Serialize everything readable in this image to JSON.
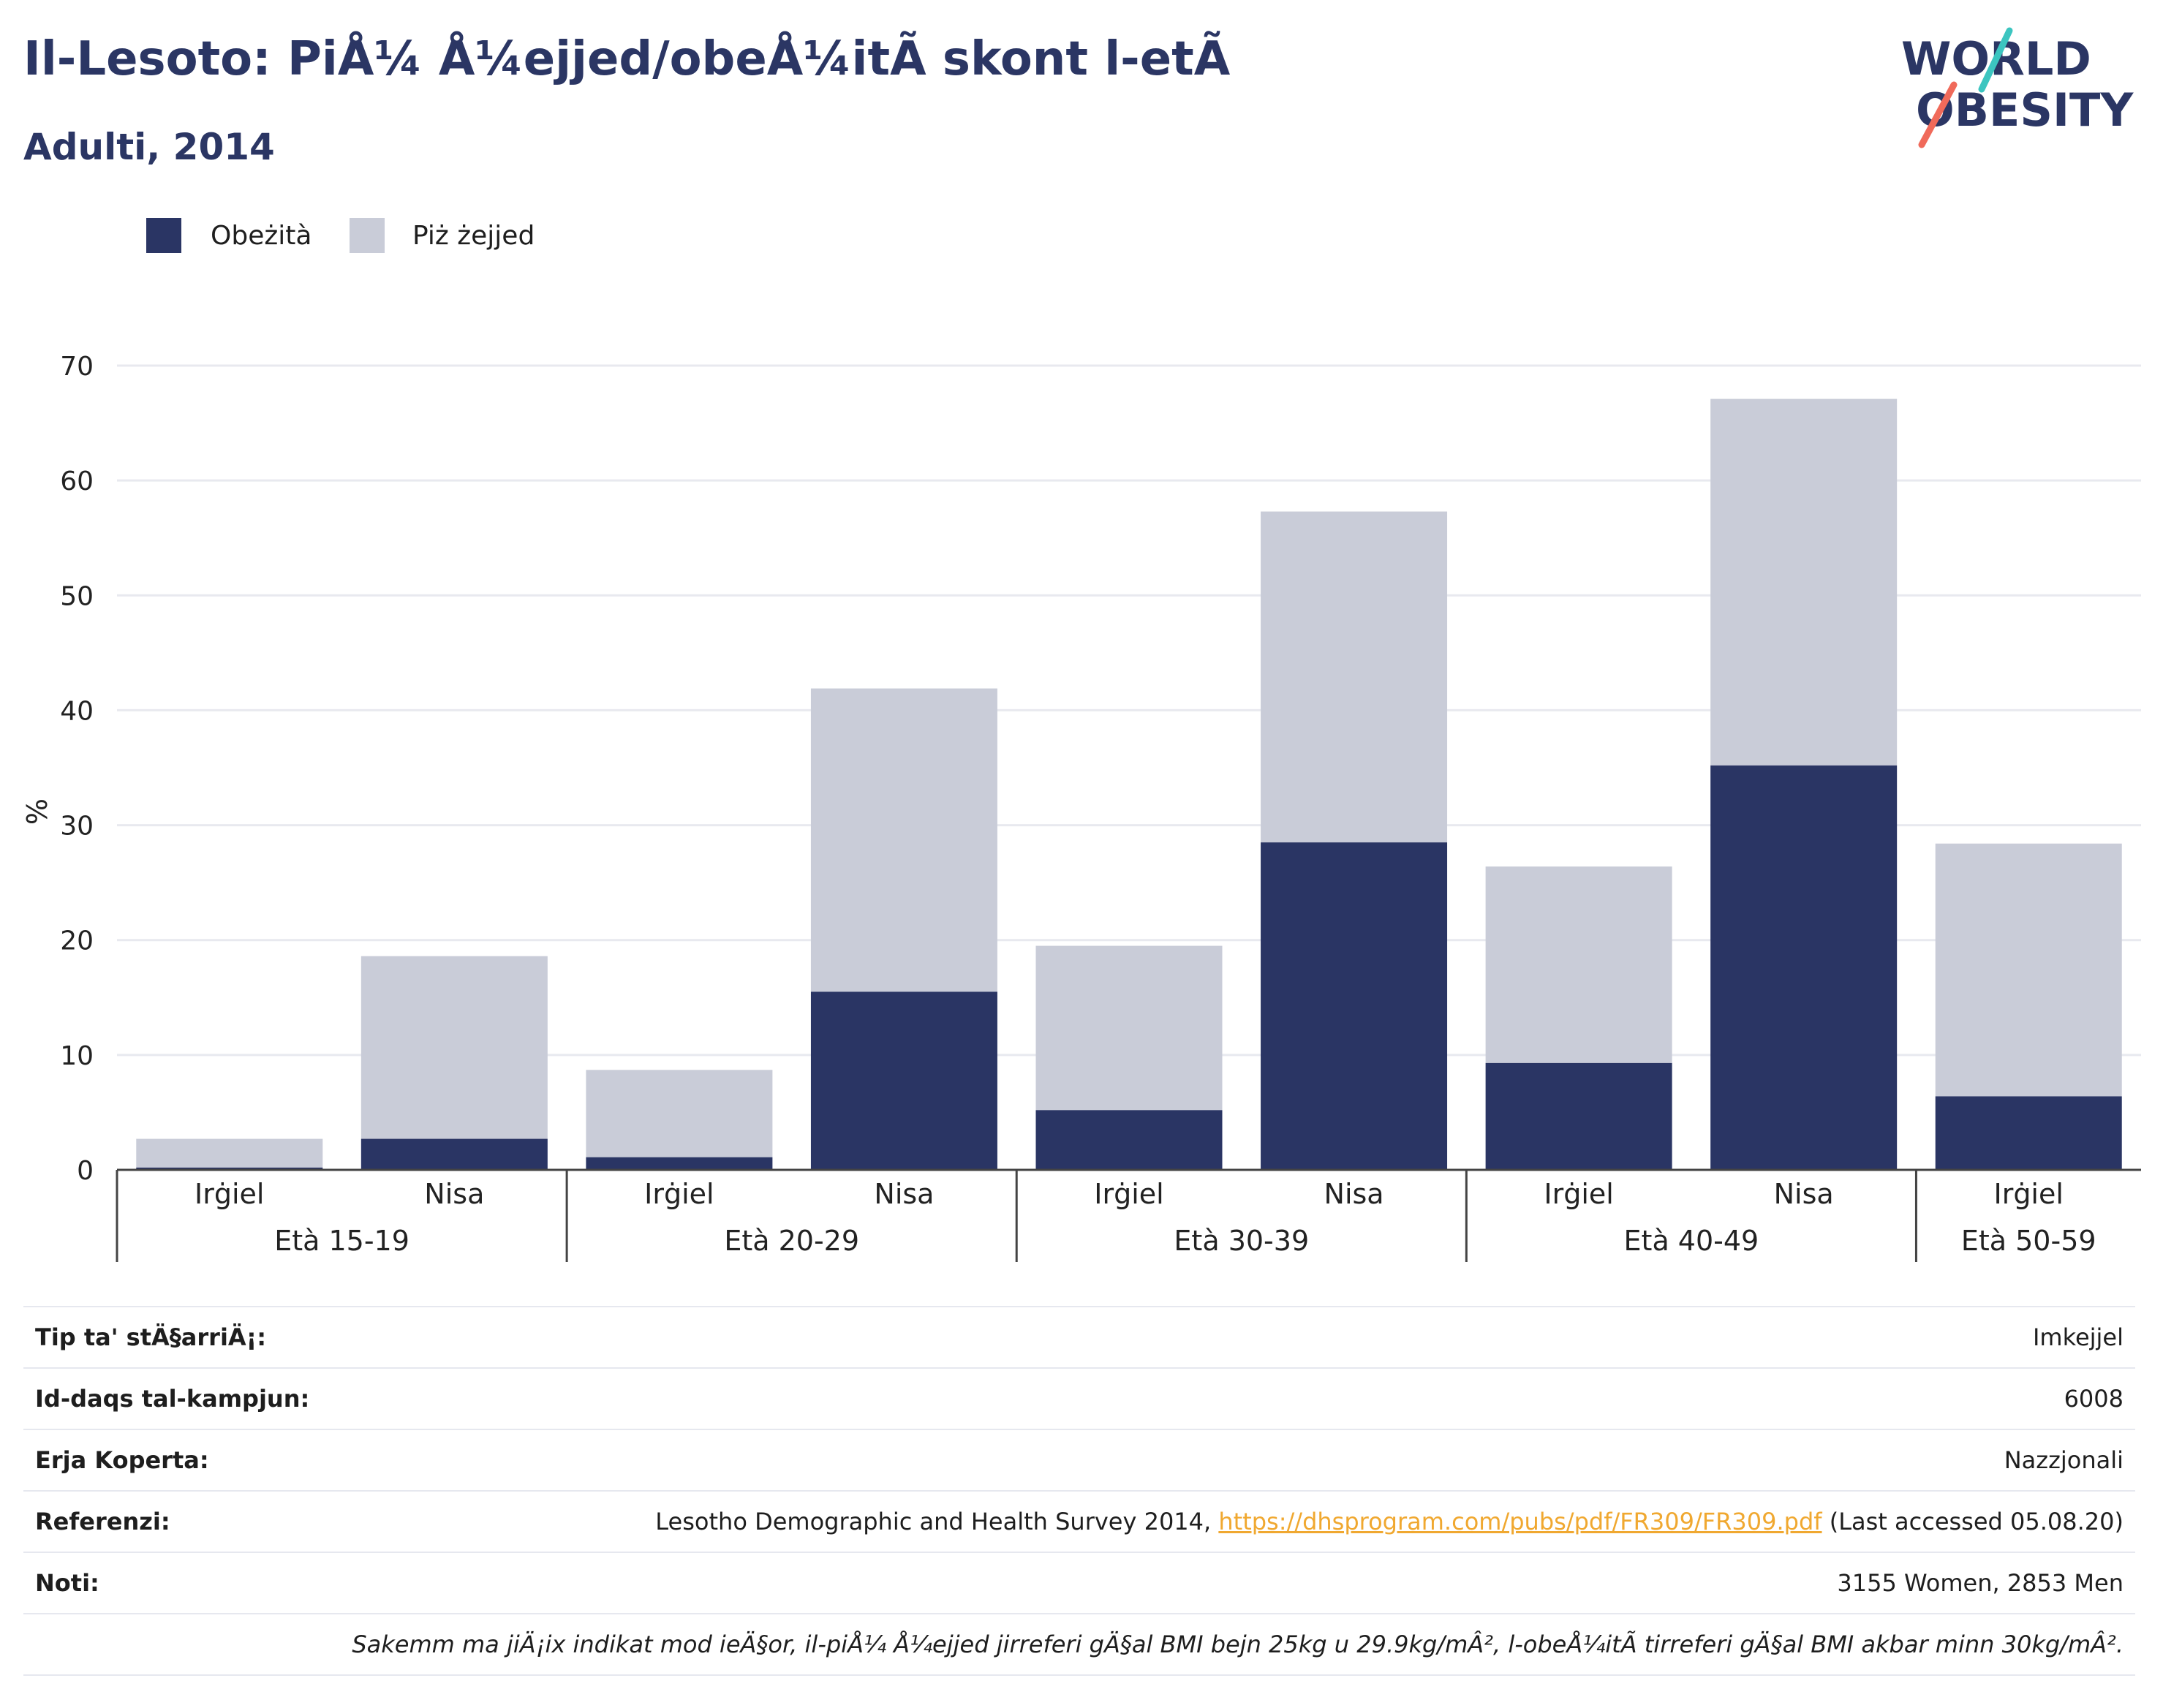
{
  "header": {
    "title": "Il-Lesoto: PiÅ¼ Å¼ejjed/obeÅ¼itÃ  skont l-etÃ",
    "subtitle": "Adulti, 2014"
  },
  "logo": {
    "line1": "WORLD",
    "line2": "OBESITY",
    "accent": "#3cc5c0",
    "slash": "#f06a5a",
    "text_color": "#2b3664"
  },
  "colors": {
    "obesity": "#2a3564",
    "overweight": "#c9ccd8",
    "title": "#2b3664"
  },
  "chart_data": {
    "type": "bar",
    "stacked": true,
    "ylabel": "%",
    "ylim": [
      0,
      70
    ],
    "yticks": [
      0,
      10,
      20,
      30,
      40,
      50,
      60,
      70
    ],
    "grid": true,
    "legend_position": "top-left",
    "groups": [
      {
        "label": "Età 15-19",
        "bars": [
          "Irġiel",
          "Nisa"
        ]
      },
      {
        "label": "Età 20-29",
        "bars": [
          "Irġiel",
          "Nisa"
        ]
      },
      {
        "label": "Età 30-39",
        "bars": [
          "Irġiel",
          "Nisa"
        ]
      },
      {
        "label": "Età 40-49",
        "bars": [
          "Irġiel",
          "Nisa"
        ]
      },
      {
        "label": "Età 50-59",
        "bars": [
          "Irġiel"
        ]
      }
    ],
    "categories": [
      "Irġiel",
      "Nisa",
      "Irġiel",
      "Nisa",
      "Irġiel",
      "Nisa",
      "Irġiel",
      "Nisa",
      "Irġiel"
    ],
    "series": [
      {
        "name": "Obeżità",
        "values": [
          0.2,
          2.7,
          1.1,
          15.5,
          5.2,
          28.5,
          9.3,
          35.2,
          6.4
        ]
      },
      {
        "name": "Piż żejjed",
        "values": [
          2.5,
          15.9,
          7.6,
          26.4,
          14.3,
          28.8,
          17.1,
          31.9,
          22.0
        ]
      }
    ]
  },
  "meta": {
    "survey_type_label": "Tip ta' stÄ§arriÄ¡:",
    "survey_type_value": "Imkejjel",
    "sample_label": "Id-daqs tal-kampjun:",
    "sample_value": "6008",
    "area_label": "Erja Koperta:",
    "area_value": "Nazzjonali",
    "reference_label": "Referenzi:",
    "reference_text": "Lesotho Demographic and Health Survey 2014, ",
    "reference_link": "https://dhsprogram.com/pubs/pdf/FR309/FR309.pdf",
    "reference_suffix": " (Last accessed 05.08.20)",
    "notes_label": "Noti:",
    "notes_value": "3155 Women, 2853 Men",
    "footnote": "Sakemm ma jiÄ¡ix indikat mod ieÄ§or, il-piÅ¼ Å¼ejjed jirreferi gÄ§al BMI bejn 25kg u 29.9kg/mÂ², l-obeÅ¼itÃ  tirreferi gÄ§al BMI akbar minn 30kg/mÂ²."
  }
}
